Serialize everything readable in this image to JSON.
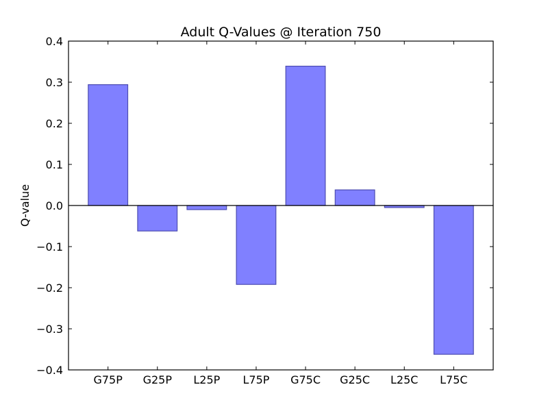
{
  "chart_data": {
    "type": "bar",
    "title": "Adult Q-Values @ Iteration 750",
    "xlabel": "",
    "ylabel": "Q-value",
    "categories": [
      "G75P",
      "G25P",
      "L25P",
      "L75P",
      "G75C",
      "G25C",
      "L25C",
      "L75C"
    ],
    "values": [
      0.294,
      -0.062,
      -0.01,
      -0.192,
      0.339,
      0.038,
      -0.005,
      -0.362
    ],
    "ylim": [
      -0.4,
      0.4
    ],
    "yticks": [
      -0.4,
      -0.3,
      -0.2,
      -0.1,
      0.0,
      0.1,
      0.2,
      0.3,
      0.4
    ],
    "ytick_labels": [
      "−0.4",
      "−0.3",
      "−0.2",
      "−0.1",
      "0.0",
      "0.1",
      "0.2",
      "0.3",
      "0.4"
    ],
    "grid": false,
    "bar_color": "#8080ff",
    "bar_edge_color": "#4c4cb0"
  }
}
